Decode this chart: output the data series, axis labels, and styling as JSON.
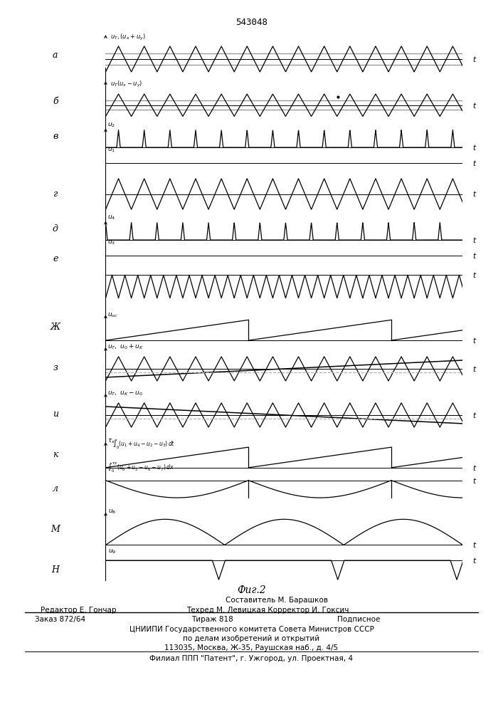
{
  "title": "543048",
  "fig2_label": "Фиг.2",
  "footer_lines": [
    "Составитель М. Барашков",
    "Редактор Е. Гончар",
    "Техред М. Левицкая Корректор И. Гоксич",
    "Заказ 872/64",
    "Тираж 818",
    "Подписное",
    "ЦНИИПИ Государственного комитета Совета Министров СССР",
    "по делам изобретений и открытий",
    "113035, Москва, Ж-35, Раушская наб., д. 4/5",
    "Филиал ППП \"Патент\", г. Ужгород, ул. Проектная, 4"
  ]
}
